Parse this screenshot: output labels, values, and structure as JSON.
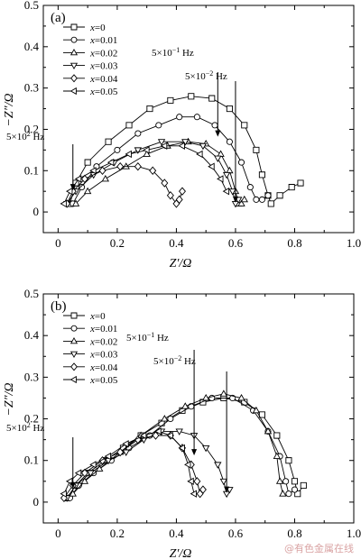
{
  "chart_data": [
    {
      "type": "scatter",
      "panel_label": "(a)",
      "xlabel": "Z′/Ω",
      "ylabel": "−Z″/Ω",
      "xlim": [
        -0.05,
        1.0
      ],
      "ylim": [
        -0.05,
        0.5
      ],
      "x_ticks": [
        "0",
        "0.2",
        "0.4",
        "0.6",
        "0.8",
        "1.0"
      ],
      "y_ticks": [
        "0",
        "0.1",
        "0.2",
        "0.3",
        "0.4",
        "0.5"
      ],
      "legend_position": "top-left",
      "annotations": [
        {
          "text": "5×10² Hz",
          "x": 0.05,
          "y": 0.05
        },
        {
          "text": "5×10⁻¹ Hz",
          "x": 0.54,
          "y": 0.18
        },
        {
          "text": "5×10⁻² Hz",
          "x": 0.6,
          "y": 0.02
        }
      ],
      "series": [
        {
          "name": "x=0",
          "marker": "square",
          "points": [
            [
              0.04,
              0.02
            ],
            [
              0.06,
              0.07
            ],
            [
              0.1,
              0.12
            ],
            [
              0.17,
              0.17
            ],
            [
              0.24,
              0.21
            ],
            [
              0.31,
              0.25
            ],
            [
              0.38,
              0.27
            ],
            [
              0.45,
              0.28
            ],
            [
              0.52,
              0.275
            ],
            [
              0.58,
              0.25
            ],
            [
              0.63,
              0.21
            ],
            [
              0.67,
              0.15
            ],
            [
              0.69,
              0.09
            ],
            [
              0.71,
              0.04
            ],
            [
              0.72,
              0.02
            ],
            [
              0.75,
              0.04
            ],
            [
              0.79,
              0.06
            ],
            [
              0.82,
              0.07
            ]
          ]
        },
        {
          "name": "x=0.01",
          "marker": "circle",
          "points": [
            [
              0.05,
              0.02
            ],
            [
              0.08,
              0.06
            ],
            [
              0.13,
              0.11
            ],
            [
              0.2,
              0.15
            ],
            [
              0.27,
              0.19
            ],
            [
              0.34,
              0.21
            ],
            [
              0.41,
              0.23
            ],
            [
              0.47,
              0.23
            ],
            [
              0.53,
              0.21
            ],
            [
              0.58,
              0.17
            ],
            [
              0.62,
              0.12
            ],
            [
              0.65,
              0.06
            ],
            [
              0.67,
              0.03
            ],
            [
              0.69,
              0.03
            ],
            [
              0.71,
              0.04
            ]
          ]
        },
        {
          "name": "x=0.02",
          "marker": "triangle-up",
          "points": [
            [
              0.06,
              0.02
            ],
            [
              0.1,
              0.05
            ],
            [
              0.16,
              0.08
            ],
            [
              0.23,
              0.11
            ],
            [
              0.3,
              0.14
            ],
            [
              0.37,
              0.16
            ],
            [
              0.44,
              0.17
            ],
            [
              0.5,
              0.165
            ],
            [
              0.55,
              0.14
            ],
            [
              0.58,
              0.1
            ],
            [
              0.6,
              0.05
            ],
            [
              0.61,
              0.02
            ],
            [
              0.62,
              0.02
            ],
            [
              0.63,
              0.03
            ]
          ]
        },
        {
          "name": "x=0.03",
          "marker": "triangle-down",
          "points": [
            [
              0.03,
              0.02
            ],
            [
              0.06,
              0.05
            ],
            [
              0.12,
              0.09
            ],
            [
              0.19,
              0.12
            ],
            [
              0.27,
              0.15
            ],
            [
              0.35,
              0.17
            ],
            [
              0.43,
              0.17
            ],
            [
              0.49,
              0.16
            ],
            [
              0.54,
              0.13
            ],
            [
              0.57,
              0.09
            ],
            [
              0.59,
              0.05
            ],
            [
              0.6,
              0.02
            ],
            [
              0.61,
              0.03
            ]
          ]
        },
        {
          "name": "x=0.04",
          "marker": "diamond",
          "points": [
            [
              0.03,
              0.02
            ],
            [
              0.05,
              0.05
            ],
            [
              0.09,
              0.08
            ],
            [
              0.15,
              0.1
            ],
            [
              0.21,
              0.11
            ],
            [
              0.27,
              0.11
            ],
            [
              0.32,
              0.1
            ],
            [
              0.36,
              0.07
            ],
            [
              0.38,
              0.04
            ],
            [
              0.4,
              0.02
            ],
            [
              0.41,
              0.03
            ],
            [
              0.42,
              0.05
            ]
          ]
        },
        {
          "name": "x=0.05",
          "marker": "triangle-left",
          "points": [
            [
              0.02,
              0.02
            ],
            [
              0.04,
              0.05
            ],
            [
              0.07,
              0.08
            ],
            [
              0.12,
              0.1
            ],
            [
              0.18,
              0.12
            ],
            [
              0.24,
              0.14
            ],
            [
              0.3,
              0.15
            ],
            [
              0.36,
              0.16
            ],
            [
              0.42,
              0.16
            ],
            [
              0.48,
              0.14
            ],
            [
              0.52,
              0.11
            ],
            [
              0.55,
              0.08
            ],
            [
              0.57,
              0.05
            ]
          ]
        }
      ]
    },
    {
      "type": "scatter",
      "panel_label": "(b)",
      "xlabel": "Z′/Ω",
      "ylabel": "−Z″/Ω",
      "xlim": [
        -0.05,
        1.0
      ],
      "ylim": [
        -0.05,
        0.5
      ],
      "x_ticks": [
        "0",
        "0.2",
        "0.4",
        "0.6",
        "0.8",
        "1.0"
      ],
      "y_ticks": [
        "0",
        "0.1",
        "0.2",
        "0.3",
        "0.4",
        "0.5"
      ],
      "legend_position": "top-left",
      "annotations": [
        {
          "text": "5×10² Hz",
          "x": 0.05,
          "y": 0.03
        },
        {
          "text": "5×10⁻¹ Hz",
          "x": 0.46,
          "y": 0.11
        },
        {
          "text": "5×10⁻² Hz",
          "x": 0.57,
          "y": 0.02
        }
      ],
      "series": [
        {
          "name": "x=0",
          "marker": "square",
          "points": [
            [
              0.03,
              0.01
            ],
            [
              0.06,
              0.04
            ],
            [
              0.1,
              0.07
            ],
            [
              0.16,
              0.1
            ],
            [
              0.22,
              0.13
            ],
            [
              0.28,
              0.16
            ],
            [
              0.35,
              0.19
            ],
            [
              0.42,
              0.22
            ],
            [
              0.49,
              0.24
            ],
            [
              0.56,
              0.25
            ],
            [
              0.63,
              0.24
            ],
            [
              0.69,
              0.21
            ],
            [
              0.74,
              0.16
            ],
            [
              0.78,
              0.1
            ],
            [
              0.8,
              0.05
            ],
            [
              0.81,
              0.02
            ],
            [
              0.83,
              0.04
            ]
          ]
        },
        {
          "name": "x=0.01",
          "marker": "circle",
          "points": [
            [
              0.04,
              0.01
            ],
            [
              0.07,
              0.04
            ],
            [
              0.12,
              0.07
            ],
            [
              0.18,
              0.1
            ],
            [
              0.24,
              0.13
            ],
            [
              0.31,
              0.16
            ],
            [
              0.38,
              0.2
            ],
            [
              0.45,
              0.23
            ],
            [
              0.52,
              0.25
            ],
            [
              0.59,
              0.25
            ],
            [
              0.66,
              0.22
            ],
            [
              0.71,
              0.17
            ],
            [
              0.75,
              0.11
            ],
            [
              0.77,
              0.05
            ],
            [
              0.78,
              0.02
            ],
            [
              0.8,
              0.03
            ]
          ]
        },
        {
          "name": "x=0.02",
          "marker": "triangle-up",
          "points": [
            [
              0.05,
              0.02
            ],
            [
              0.09,
              0.05
            ],
            [
              0.14,
              0.08
            ],
            [
              0.21,
              0.12
            ],
            [
              0.28,
              0.16
            ],
            [
              0.36,
              0.2
            ],
            [
              0.43,
              0.23
            ],
            [
              0.5,
              0.25
            ],
            [
              0.56,
              0.26
            ],
            [
              0.62,
              0.25
            ],
            [
              0.67,
              0.22
            ],
            [
              0.71,
              0.17
            ],
            [
              0.74,
              0.11
            ],
            [
              0.75,
              0.05
            ],
            [
              0.76,
              0.02
            ]
          ]
        },
        {
          "name": "x=0.03",
          "marker": "triangle-down",
          "points": [
            [
              0.03,
              0.01
            ],
            [
              0.06,
              0.04
            ],
            [
              0.11,
              0.07
            ],
            [
              0.17,
              0.1
            ],
            [
              0.23,
              0.12
            ],
            [
              0.29,
              0.15
            ],
            [
              0.35,
              0.17
            ],
            [
              0.41,
              0.17
            ],
            [
              0.46,
              0.16
            ],
            [
              0.5,
              0.13
            ],
            [
              0.54,
              0.09
            ],
            [
              0.56,
              0.05
            ],
            [
              0.57,
              0.02
            ],
            [
              0.58,
              0.03
            ]
          ]
        },
        {
          "name": "x=0.04",
          "marker": "diamond",
          "points": [
            [
              0.02,
              0.01
            ],
            [
              0.05,
              0.04
            ],
            [
              0.09,
              0.07
            ],
            [
              0.15,
              0.1
            ],
            [
              0.21,
              0.12
            ],
            [
              0.27,
              0.15
            ],
            [
              0.33,
              0.16
            ],
            [
              0.38,
              0.16
            ],
            [
              0.42,
              0.13
            ],
            [
              0.45,
              0.09
            ],
            [
              0.47,
              0.05
            ],
            [
              0.48,
              0.02
            ],
            [
              0.49,
              0.03
            ]
          ]
        },
        {
          "name": "x=0.05",
          "marker": "triangle-left",
          "points": [
            [
              0.02,
              0.02
            ],
            [
              0.04,
              0.05
            ],
            [
              0.07,
              0.07
            ],
            [
              0.12,
              0.09
            ],
            [
              0.17,
              0.11
            ],
            [
              0.23,
              0.14
            ],
            [
              0.29,
              0.16
            ],
            [
              0.34,
              0.17
            ],
            [
              0.38,
              0.16
            ],
            [
              0.42,
              0.13
            ],
            [
              0.44,
              0.09
            ],
            [
              0.45,
              0.05
            ],
            [
              0.46,
              0.02
            ]
          ]
        }
      ]
    }
  ],
  "watermark": "@有色金属在线"
}
